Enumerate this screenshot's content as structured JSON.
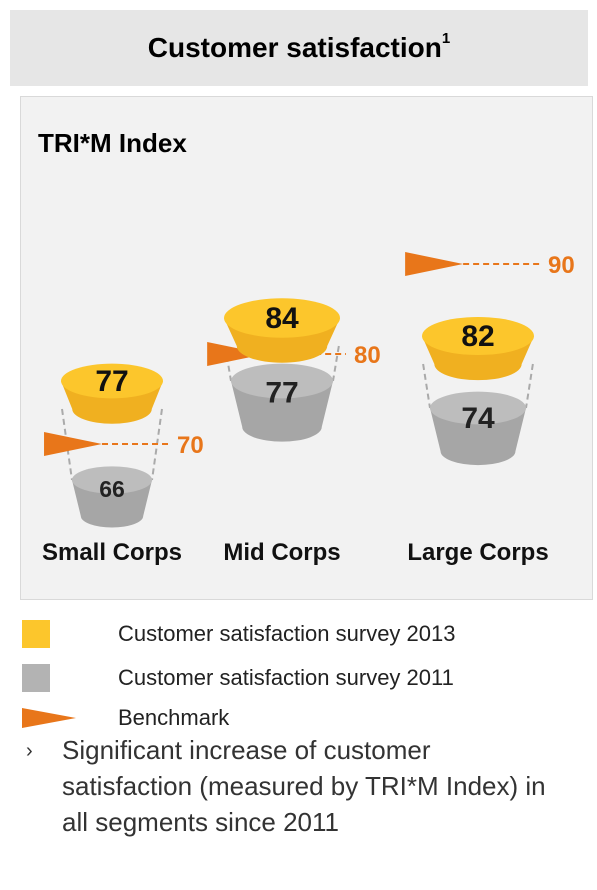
{
  "header": {
    "title": "Customer satisfaction",
    "superscript": "1"
  },
  "panel": {
    "title": "TRI*M Index"
  },
  "colors": {
    "survey_2013": "#fcc62c",
    "survey_2011": "#b3b3b3",
    "benchmark": "#e8761a"
  },
  "chart_data": {
    "type": "bar",
    "title": "TRI*M Index",
    "categories": [
      "Small Corps",
      "Mid Corps",
      "Large Corps"
    ],
    "series": [
      {
        "name": "Customer satisfaction survey 2013",
        "values": [
          77,
          84,
          82
        ]
      },
      {
        "name": "Customer satisfaction survey 2011",
        "values": [
          66,
          77,
          74
        ]
      },
      {
        "name": "Benchmark",
        "values": [
          70,
          80,
          90
        ]
      }
    ]
  },
  "legend": [
    {
      "label": "Customer satisfaction survey 2013",
      "icon": "yellow-square"
    },
    {
      "label": "Customer satisfaction survey 2011",
      "icon": "gray-square"
    },
    {
      "label": "Benchmark",
      "icon": "orange-triangle"
    }
  ],
  "notes": [
    {
      "bullet": "›",
      "text": "Significant increase of customer satisfaction (measured by TRI*M Index) in all segments since 2011"
    }
  ]
}
